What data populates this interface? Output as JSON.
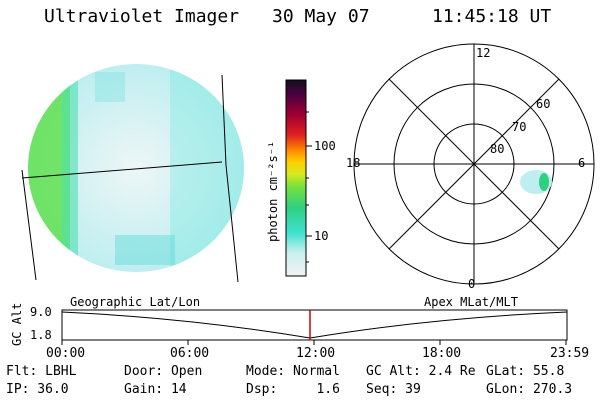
{
  "header": {
    "instrument": "Ultraviolet Imager",
    "date": "30 May 07",
    "time": "11:45:18 UT"
  },
  "colorbar": {
    "unit_label": "photon cm⁻²s⁻¹",
    "ticks": [
      "100",
      "10"
    ]
  },
  "polar_plot": {
    "mlt_labels": [
      "12",
      "18",
      "6",
      "0"
    ],
    "lat_labels": [
      "60",
      "70",
      "80"
    ]
  },
  "timeline": {
    "left_title": "Geographic Lat/Lon",
    "right_title": "Apex MLat/MLT",
    "y_axis_label": "GC Alt",
    "y_ticks": [
      "9.0",
      "1.8"
    ],
    "x_ticks": [
      "00:00",
      "06:00",
      "12:00",
      "18:00",
      "23:59"
    ],
    "marker_color": "#cc0000"
  },
  "info": {
    "flt": "Flt: LBHL",
    "door": "Door: Open",
    "mode": "Mode: Normal",
    "gc_alt": "GC Alt: 2.4 Re",
    "glat": "GLat:  55.8",
    "ip": "IP: 36.0",
    "gain": "Gain: 14",
    "dsp": "Dsp:     1.6",
    "seq": "Seq: 39",
    "glon": "GLon: 270.3"
  }
}
